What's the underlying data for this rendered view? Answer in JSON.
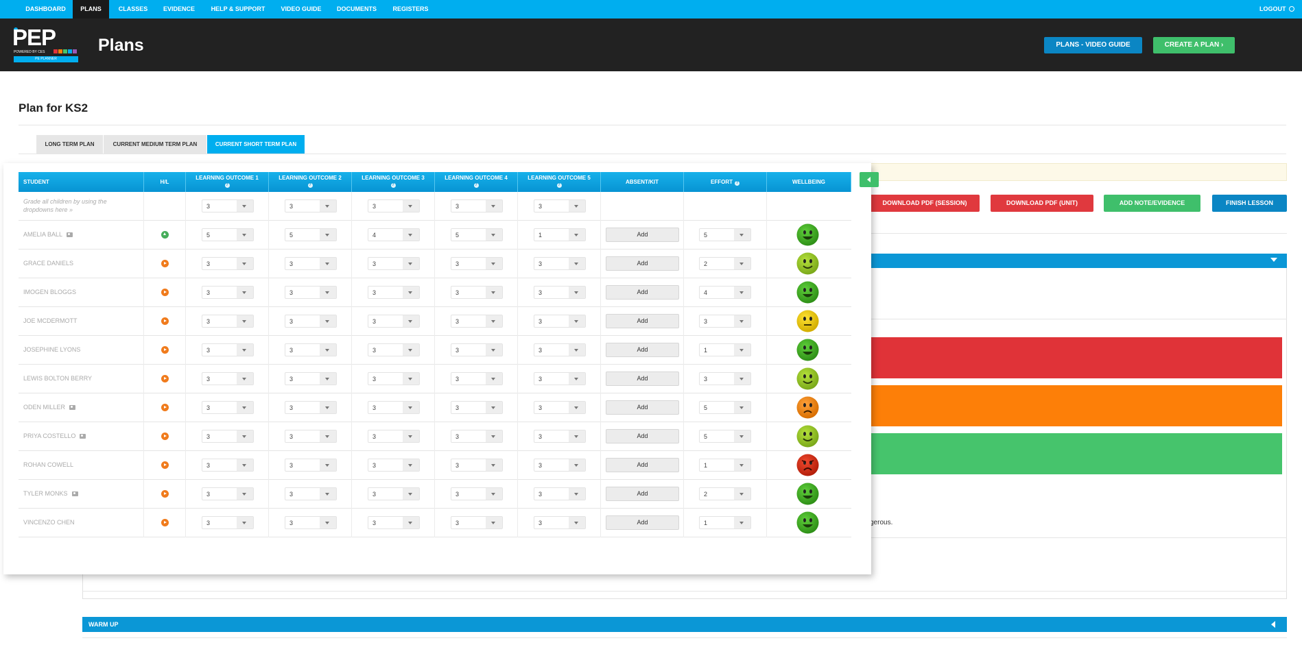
{
  "nav": {
    "items": [
      {
        "label": "DASHBOARD",
        "active": false
      },
      {
        "label": "PLANS",
        "active": true
      },
      {
        "label": "CLASSES",
        "active": false
      },
      {
        "label": "EVIDENCE",
        "active": false
      },
      {
        "label": "HELP & SUPPORT",
        "active": false
      },
      {
        "label": "VIDEO GUIDE",
        "active": false
      },
      {
        "label": "DOCUMENTS",
        "active": false
      },
      {
        "label": "REGISTERS",
        "active": false
      }
    ],
    "logout": "LOGOUT"
  },
  "header": {
    "logo": {
      "main": "PEP",
      "powered": "POWERED BY CES",
      "sub": "PE PLANNER"
    },
    "title": "Plans",
    "video_guide_button": "PLANS - VIDEO GUIDE",
    "create_plan_button": "CREATE A PLAN ›"
  },
  "page": {
    "title": "Plan for KS2",
    "tabs": [
      {
        "label": "LONG TERM PLAN",
        "active": false
      },
      {
        "label": "CURRENT MEDIUM TERM PLAN",
        "active": false
      },
      {
        "label": "CURRENT SHORT TERM PLAN",
        "active": true
      }
    ]
  },
  "actions": {
    "download_session": "DOWNLOAD PDF (SESSION)",
    "download_unit": "DOWNLOAD PDF (UNIT)",
    "add_note": "ADD NOTE/EVIDENCE",
    "finish": "FINISH LESSON"
  },
  "background": {
    "snippet_text": "gerous.",
    "warm_up_label": "WARM UP"
  },
  "grading": {
    "columns": [
      {
        "label": "STUDENT",
        "help": false
      },
      {
        "label": "H/L",
        "help": false
      },
      {
        "label": "LEARNING OUTCOME 1",
        "help": true
      },
      {
        "label": "LEARNING OUTCOME 2",
        "help": true
      },
      {
        "label": "LEARNING OUTCOME 3",
        "help": true
      },
      {
        "label": "LEARNING OUTCOME 4",
        "help": true
      },
      {
        "label": "LEARNING OUTCOME 5",
        "help": true
      },
      {
        "label": "ABSENT/KIT",
        "help": false
      },
      {
        "label": "EFFORT",
        "help": true
      },
      {
        "label": "WELLBEING",
        "help": false
      }
    ],
    "grade_all_hint": "Grade all children by using the dropdowns here »",
    "grade_all_values": [
      "3",
      "3",
      "3",
      "3",
      "3"
    ],
    "add_label": "Add",
    "students": [
      {
        "name": "AMELIA BALL",
        "camera": true,
        "trend": "up",
        "outcomes": [
          "5",
          "5",
          "4",
          "5",
          "1"
        ],
        "effort": "5",
        "wellbeing": "very-happy"
      },
      {
        "name": "GRACE DANIELS",
        "camera": false,
        "trend": "right",
        "outcomes": [
          "3",
          "3",
          "3",
          "3",
          "3"
        ],
        "effort": "2",
        "wellbeing": "happy"
      },
      {
        "name": "IMOGEN Bloggs",
        "camera": false,
        "trend": "right",
        "outcomes": [
          "3",
          "3",
          "3",
          "3",
          "3"
        ],
        "effort": "4",
        "wellbeing": "very-happy"
      },
      {
        "name": "Joe MCDERMOTT",
        "camera": false,
        "trend": "right",
        "outcomes": [
          "3",
          "3",
          "3",
          "3",
          "3"
        ],
        "effort": "3",
        "wellbeing": "neutral"
      },
      {
        "name": "JOSEPHINE LYONS",
        "camera": false,
        "trend": "right",
        "outcomes": [
          "3",
          "3",
          "3",
          "3",
          "3"
        ],
        "effort": "1",
        "wellbeing": "very-happy"
      },
      {
        "name": "LEWIS BOLTON BERRY",
        "camera": false,
        "trend": "right",
        "outcomes": [
          "3",
          "3",
          "3",
          "3",
          "3"
        ],
        "effort": "3",
        "wellbeing": "happy"
      },
      {
        "name": "ODEN MILLER",
        "camera": true,
        "trend": "right",
        "outcomes": [
          "3",
          "3",
          "3",
          "3",
          "3"
        ],
        "effort": "5",
        "wellbeing": "sad"
      },
      {
        "name": "PRIYA COSTELLO",
        "camera": true,
        "trend": "right",
        "outcomes": [
          "3",
          "3",
          "3",
          "3",
          "3"
        ],
        "effort": "5",
        "wellbeing": "happy"
      },
      {
        "name": "ROHAN COWELL",
        "camera": false,
        "trend": "right",
        "outcomes": [
          "3",
          "3",
          "3",
          "3",
          "3"
        ],
        "effort": "1",
        "wellbeing": "angry"
      },
      {
        "name": "TYLER MONKS",
        "camera": true,
        "trend": "right",
        "outcomes": [
          "3",
          "3",
          "3",
          "3",
          "3"
        ],
        "effort": "2",
        "wellbeing": "very-happy"
      },
      {
        "name": "VINCENZO CHEN",
        "camera": false,
        "trend": "right",
        "outcomes": [
          "3",
          "3",
          "3",
          "3",
          "3"
        ],
        "effort": "1",
        "wellbeing": "very-happy"
      }
    ]
  },
  "colors": {
    "nav_blue": "#00aeef",
    "header_dark": "#222222",
    "video_guide": "#0b86c4",
    "create_plan": "#3fbf6b",
    "download": "#e0393e",
    "add_note": "#3fbf6b",
    "finish": "#0b86c4",
    "risk_red": "#e03338",
    "risk_orange": "#fd7f08",
    "risk_green": "#46c46c"
  }
}
